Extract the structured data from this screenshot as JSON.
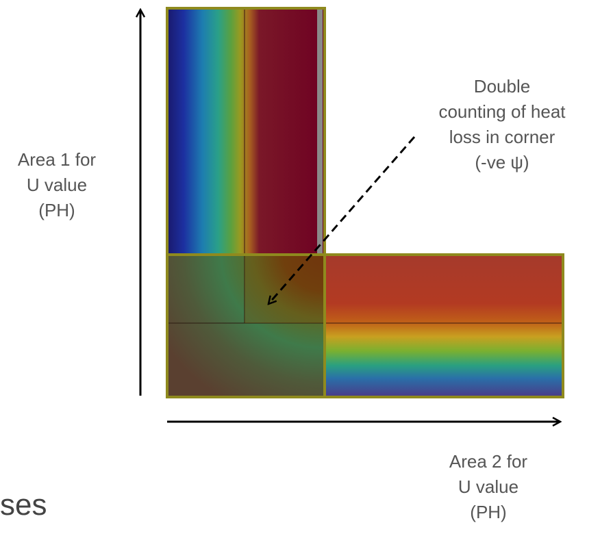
{
  "labels": {
    "area1": [
      "Area 1 for",
      "U value",
      "(PH)"
    ],
    "area2": [
      "Area 2 for",
      "U value",
      "(PH)"
    ],
    "double_counting": [
      "Double",
      "counting of heat",
      "loss in corner",
      "(-ve ψ)"
    ]
  },
  "partial_text": "ses",
  "colors": {
    "outline": "#8f8a1e",
    "arrow": "#000000",
    "label_text": "#555555",
    "overlay": "#7a6010"
  }
}
